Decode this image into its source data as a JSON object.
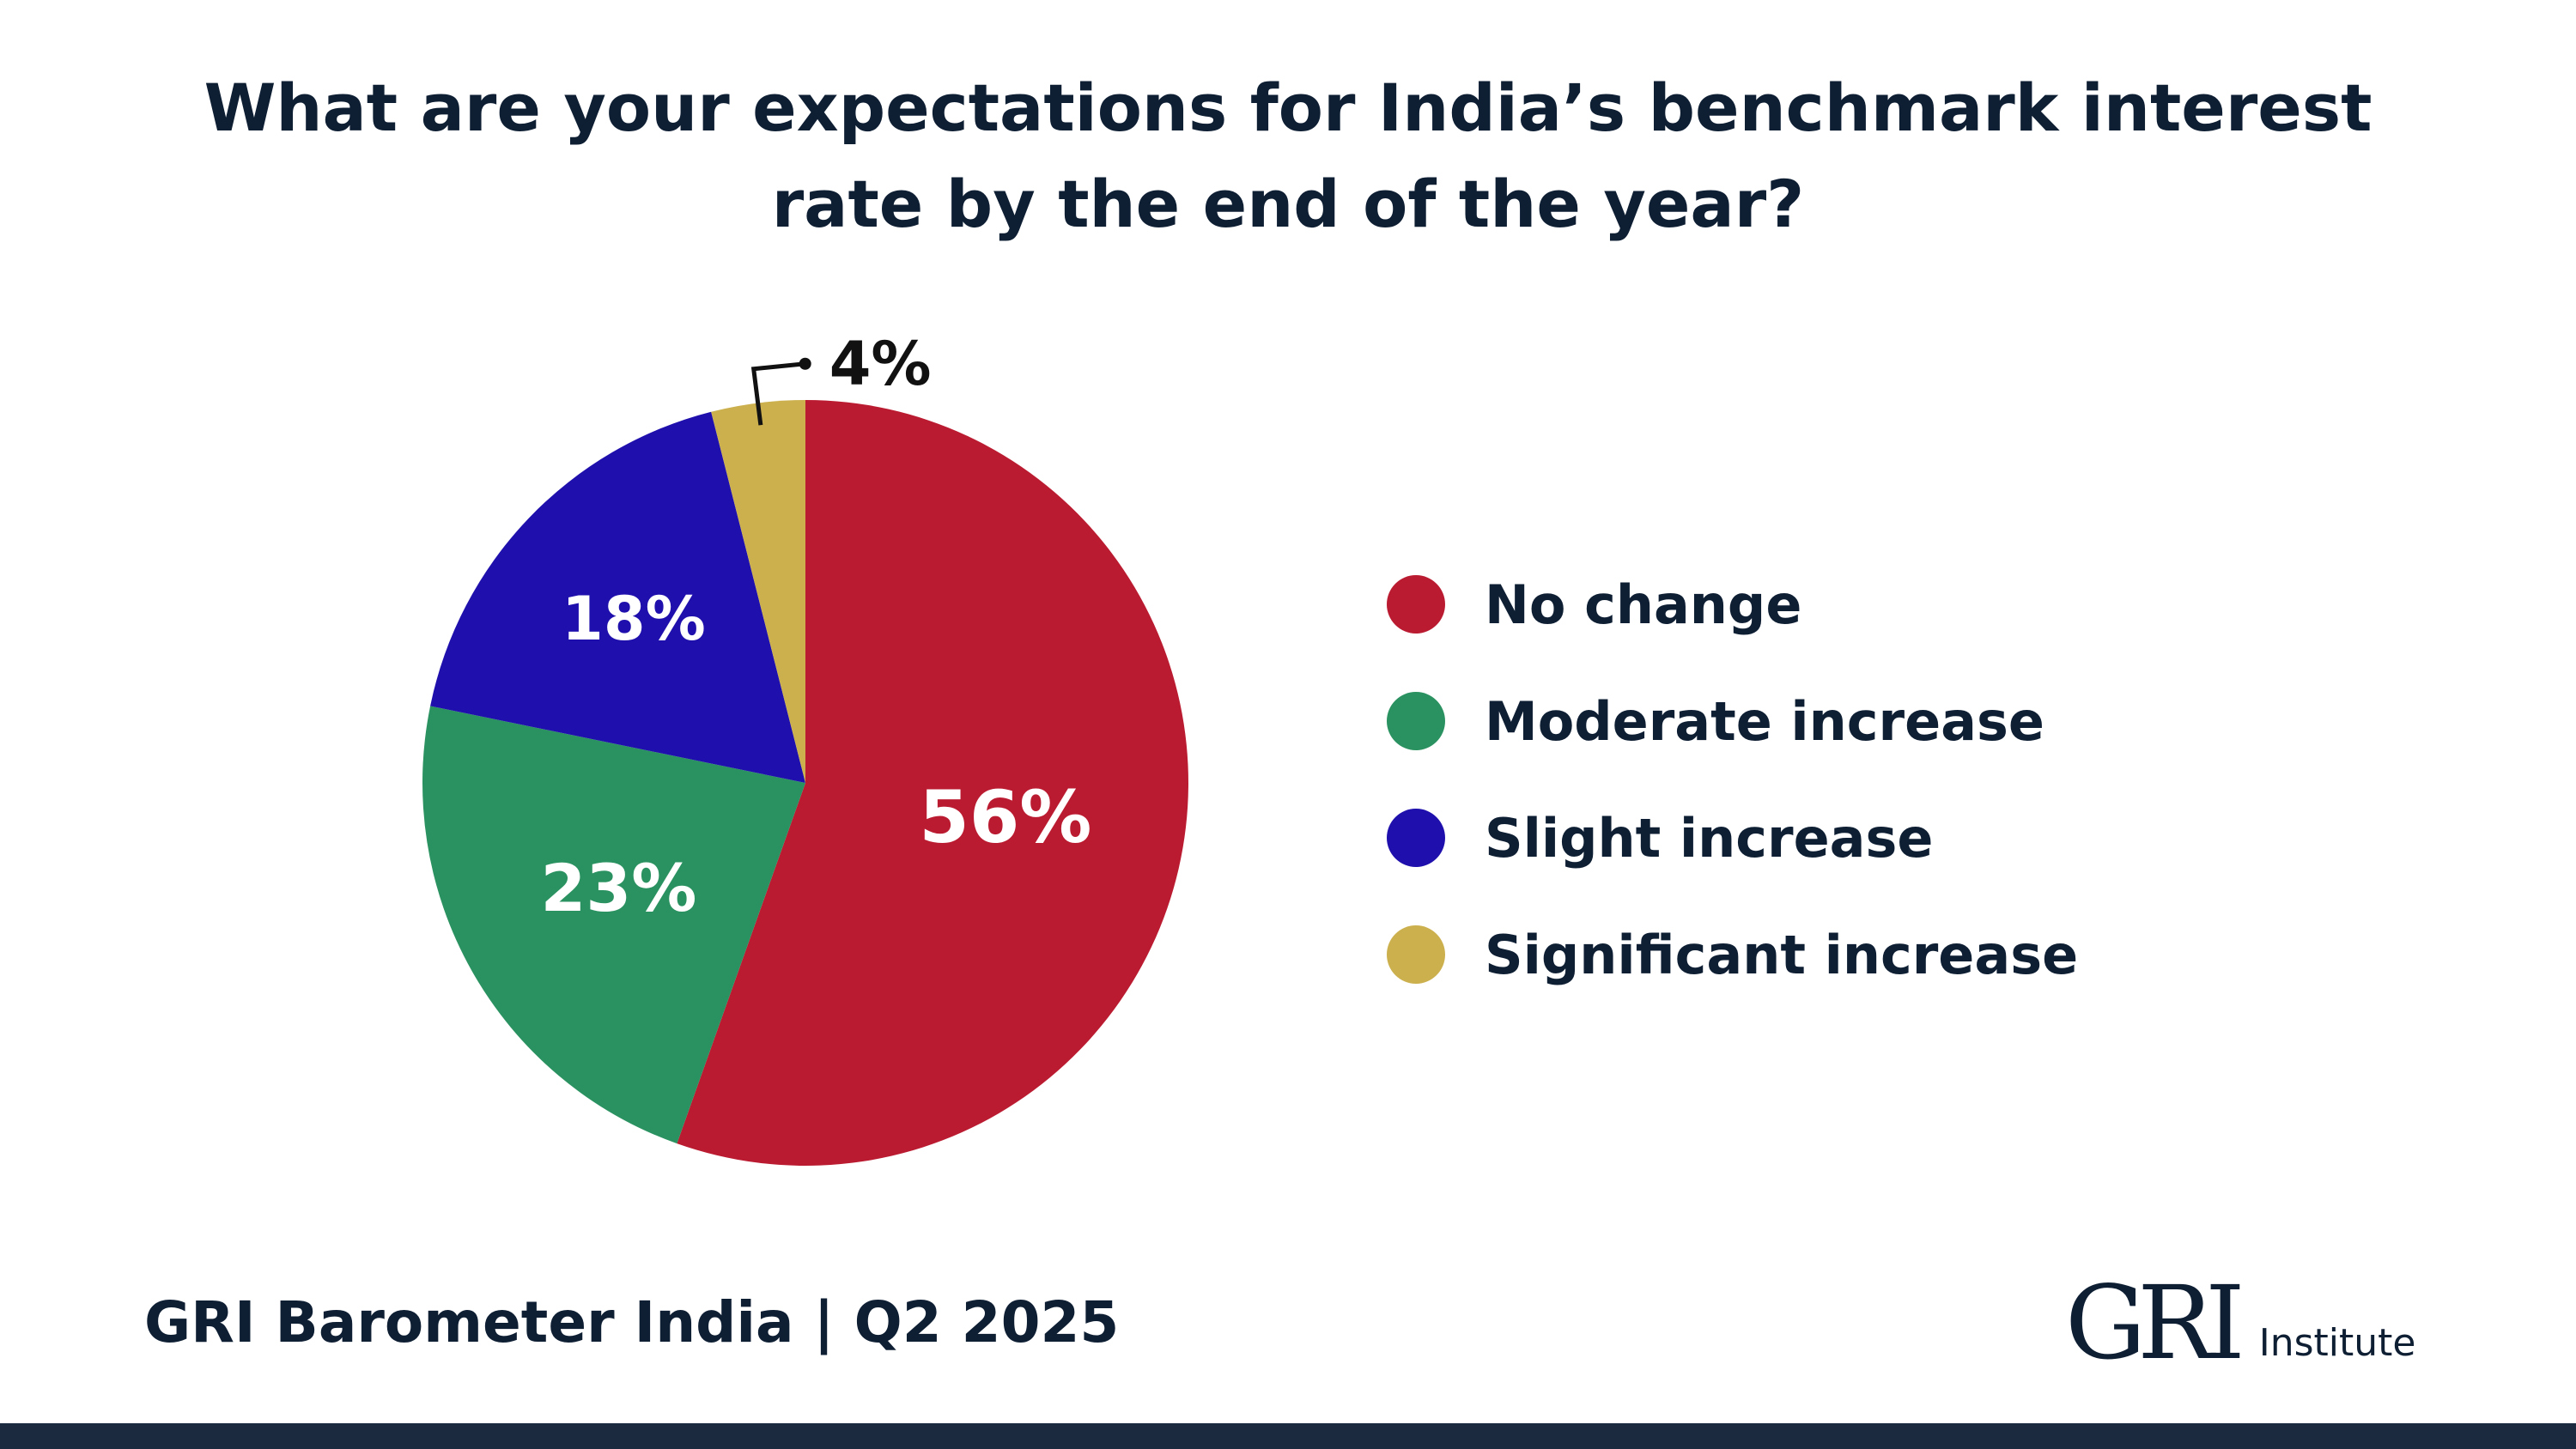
{
  "title": {
    "line1": "What are your expectations for India’s benchmark interest",
    "line2": "rate by the end of the year?"
  },
  "chart_data": {
    "type": "pie",
    "title": "What are your expectations for India’s benchmark interest rate by the end of the year?",
    "slices": [
      {
        "label": "No change",
        "value": 56,
        "display": "56%",
        "color": "#bb1b30"
      },
      {
        "label": "Moderate increase",
        "value": 23,
        "display": "23%",
        "color": "#2a9260"
      },
      {
        "label": "Slight increase",
        "value": 18,
        "display": "18%",
        "color": "#1f10ad"
      },
      {
        "label": "Significant increase",
        "value": 4,
        "display": "4%",
        "color": "#ccb04e"
      }
    ],
    "legend_position": "right"
  },
  "legend": [
    {
      "label": "No change",
      "color": "#bb1b30"
    },
    {
      "label": "Moderate increase",
      "color": "#2a9260"
    },
    {
      "label": "Slight increase",
      "color": "#1f10ad"
    },
    {
      "label": "Significant increase",
      "color": "#ccb04e"
    }
  ],
  "footer": {
    "source": "GRI Barometer India | Q2 2025",
    "logo_mark": "GRI",
    "logo_sub": "Institute"
  },
  "colors": {
    "text": "#0e1e33",
    "bottom_bar": "#1b2a3e"
  }
}
